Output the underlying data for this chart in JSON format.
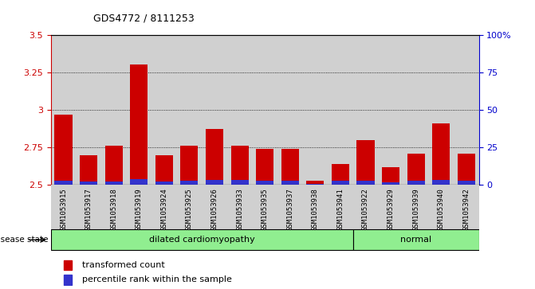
{
  "title": "GDS4772 / 8111253",
  "samples": [
    "GSM1053915",
    "GSM1053917",
    "GSM1053918",
    "GSM1053919",
    "GSM1053924",
    "GSM1053925",
    "GSM1053926",
    "GSM1053933",
    "GSM1053935",
    "GSM1053937",
    "GSM1053938",
    "GSM1053941",
    "GSM1053922",
    "GSM1053929",
    "GSM1053939",
    "GSM1053940",
    "GSM1053942"
  ],
  "red_values": [
    2.97,
    2.7,
    2.76,
    3.3,
    2.7,
    2.76,
    2.87,
    2.76,
    2.74,
    2.74,
    2.53,
    2.64,
    2.8,
    2.62,
    2.71,
    2.91,
    2.71
  ],
  "blue_heights": [
    0.03,
    0.025,
    0.025,
    0.04,
    0.025,
    0.03,
    0.035,
    0.035,
    0.03,
    0.03,
    0.005,
    0.028,
    0.03,
    0.02,
    0.028,
    0.033,
    0.028
  ],
  "n_dilated": 12,
  "ylim_left": [
    2.5,
    3.5
  ],
  "ylim_right": [
    0,
    100
  ],
  "yticks_left": [
    2.5,
    2.75,
    3.0,
    3.25,
    3.5
  ],
  "ytick_labels_left": [
    "2.5",
    "2.75",
    "3",
    "3.25",
    "3.5"
  ],
  "yticks_right": [
    0,
    25,
    50,
    75,
    100
  ],
  "ytick_labels_right": [
    "0",
    "25",
    "50",
    "75",
    "100%"
  ],
  "bar_color": "#CC0000",
  "blue_color": "#3333CC",
  "col_bg_color": "#D0D0D0",
  "plot_bg_color": "#FFFFFF",
  "grid_color": "#000000",
  "grid_ticks": [
    2.75,
    3.0,
    3.25
  ],
  "dilated_color": "#90EE90",
  "normal_color": "#90EE90",
  "disease_state_label": "disease state",
  "legend_items": [
    {
      "color": "#CC0000",
      "label": "transformed count"
    },
    {
      "color": "#3333CC",
      "label": "percentile rank within the sample"
    }
  ],
  "bar_width": 0.7,
  "left_color": "#CC0000",
  "right_color": "#0000CC"
}
